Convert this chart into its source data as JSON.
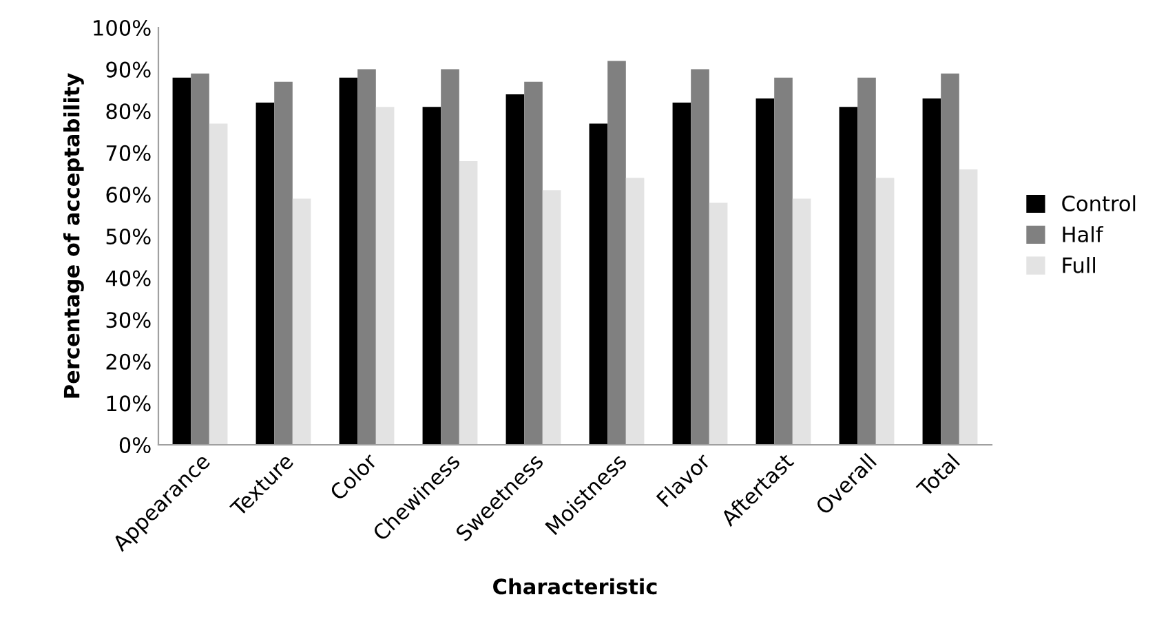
{
  "chart_data": {
    "type": "bar",
    "xlabel": "Characteristic",
    "ylabel": "Percentage of acceptability",
    "categories": [
      "Appearance",
      "Texture",
      "Color",
      "Chewiness",
      "Sweetness",
      "Moistness",
      "Flavor",
      "Aftertast",
      "Overall",
      "Total"
    ],
    "series": [
      {
        "name": "Control",
        "color": "#000000",
        "values": [
          88,
          82,
          88,
          81,
          84,
          77,
          82,
          83,
          81,
          83
        ]
      },
      {
        "name": "Half",
        "color": "#808080",
        "values": [
          89,
          87,
          90,
          90,
          87,
          92,
          90,
          88,
          88,
          89
        ]
      },
      {
        "name": "Full",
        "color": "#e3e3e3",
        "values": [
          77,
          59,
          81,
          68,
          61,
          64,
          58,
          59,
          64,
          66
        ]
      }
    ],
    "ylim": [
      0,
      100
    ],
    "yticks": [
      {
        "value": 0,
        "label": "0%"
      },
      {
        "value": 10,
        "label": "10%"
      },
      {
        "value": 20,
        "label": "20%"
      },
      {
        "value": 30,
        "label": "30%"
      },
      {
        "value": 40,
        "label": "40%"
      },
      {
        "value": 50,
        "label": "50%"
      },
      {
        "value": 60,
        "label": "60%"
      },
      {
        "value": 70,
        "label": "70%"
      },
      {
        "value": 80,
        "label": "80%"
      },
      {
        "value": 90,
        "label": "90%"
      },
      {
        "value": 100,
        "label": "100%"
      }
    ],
    "grid": false,
    "legend": "right"
  }
}
